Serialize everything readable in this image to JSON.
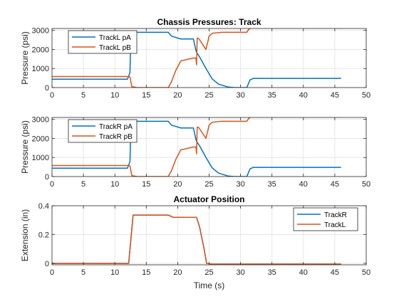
{
  "figure": {
    "background": "#ffffff"
  },
  "chart_data": [
    {
      "type": "line",
      "title": "Chassis Pressures: Track",
      "xlabel": "",
      "ylabel": "Pressure (psi)",
      "xlim": [
        0,
        50
      ],
      "ylim": [
        0,
        3100
      ],
      "xticks": [
        0,
        5,
        10,
        15,
        20,
        25,
        30,
        35,
        40,
        45,
        50
      ],
      "yticks": [
        0,
        1000,
        2000,
        3000
      ],
      "grid": true,
      "legend_position": "top-left",
      "series": [
        {
          "name": "TrackL pA",
          "color": "#0072BD",
          "x": [
            0,
            12.0,
            12.4,
            12.5,
            12.7,
            18.5,
            19.0,
            20.5,
            22.5,
            22.9,
            23.0,
            23.5,
            24.5,
            25.5,
            26.5,
            28.0,
            29.0,
            31.0,
            31.5,
            32.0,
            46
          ],
          "y": [
            440,
            440,
            780,
            2000,
            2900,
            2900,
            2700,
            2550,
            2550,
            1950,
            1850,
            1600,
            1000,
            450,
            180,
            30,
            0,
            0,
            400,
            480,
            480
          ]
        },
        {
          "name": "TrackL pB",
          "color": "#D95319",
          "x": [
            0,
            12.0,
            12.4,
            12.7,
            13.5,
            18.5,
            19.0,
            19.7,
            20.5,
            22.5,
            22.9,
            23.0,
            23.1,
            23.4,
            24.5,
            25.0,
            25.5,
            27.0,
            29.0,
            31.0,
            31.3,
            31.6,
            46
          ],
          "y": [
            580,
            580,
            560,
            50,
            0,
            0,
            300,
            900,
            1400,
            1550,
            1550,
            1200,
            2600,
            2550,
            2000,
            2700,
            2850,
            2900,
            2900,
            2900,
            3050,
            3120,
            3120
          ]
        }
      ]
    },
    {
      "type": "line",
      "title": "",
      "xlabel": "",
      "ylabel": "Pressure (psi)",
      "xlim": [
        0,
        50
      ],
      "ylim": [
        0,
        3100
      ],
      "xticks": [
        0,
        5,
        10,
        15,
        20,
        25,
        30,
        35,
        40,
        45,
        50
      ],
      "yticks": [
        0,
        1000,
        2000,
        3000
      ],
      "grid": true,
      "legend_position": "top-left",
      "series": [
        {
          "name": "TrackR pA",
          "color": "#0072BD",
          "x": [
            0,
            12.0,
            12.4,
            12.5,
            12.7,
            18.5,
            19.0,
            20.5,
            22.5,
            22.9,
            23.0,
            23.5,
            24.5,
            25.5,
            26.5,
            28.0,
            29.0,
            31.0,
            31.5,
            32.0,
            46
          ],
          "y": [
            440,
            440,
            780,
            2000,
            2900,
            2900,
            2700,
            2550,
            2550,
            1950,
            1850,
            1600,
            1000,
            450,
            180,
            30,
            0,
            0,
            400,
            480,
            480
          ]
        },
        {
          "name": "TrackR pB",
          "color": "#D95319",
          "x": [
            0,
            12.0,
            12.4,
            12.7,
            13.5,
            18.5,
            19.0,
            19.7,
            20.5,
            22.5,
            22.9,
            23.0,
            23.1,
            23.4,
            24.5,
            25.0,
            25.5,
            27.0,
            29.0,
            31.0,
            31.3,
            31.6,
            46
          ],
          "y": [
            580,
            580,
            560,
            50,
            0,
            0,
            300,
            900,
            1400,
            1550,
            1550,
            1200,
            2600,
            2550,
            2000,
            2700,
            2850,
            2900,
            2900,
            2900,
            3050,
            3120,
            3120
          ]
        }
      ]
    },
    {
      "type": "line",
      "title": "Actuator Position",
      "xlabel": "Time (s)",
      "ylabel": "Extension (in)",
      "xlim": [
        0,
        50
      ],
      "ylim": [
        -0.01,
        0.4
      ],
      "xticks": [
        0,
        5,
        10,
        15,
        20,
        25,
        30,
        35,
        40,
        45,
        50
      ],
      "yticks": [
        0,
        0.2,
        0.4
      ],
      "grid": true,
      "legend_position": "top-right",
      "series": [
        {
          "name": "TrackR",
          "color": "#0072BD",
          "x": [
            0,
            12.2,
            12.9,
            18.5,
            19.3,
            23.0,
            23.5,
            24.2,
            24.6,
            25.5,
            29.0,
            46
          ],
          "y": [
            0,
            0,
            0.335,
            0.335,
            0.32,
            0.32,
            0.25,
            0.1,
            0,
            -0.005,
            -0.005,
            -0.005
          ]
        },
        {
          "name": "TrackL",
          "color": "#D95319",
          "x": [
            0,
            12.2,
            12.9,
            18.5,
            19.3,
            23.0,
            23.5,
            24.2,
            24.6,
            25.5,
            29.0,
            46
          ],
          "y": [
            0,
            0,
            0.335,
            0.335,
            0.32,
            0.32,
            0.25,
            0.1,
            0,
            -0.005,
            -0.005,
            -0.005
          ]
        }
      ]
    }
  ]
}
